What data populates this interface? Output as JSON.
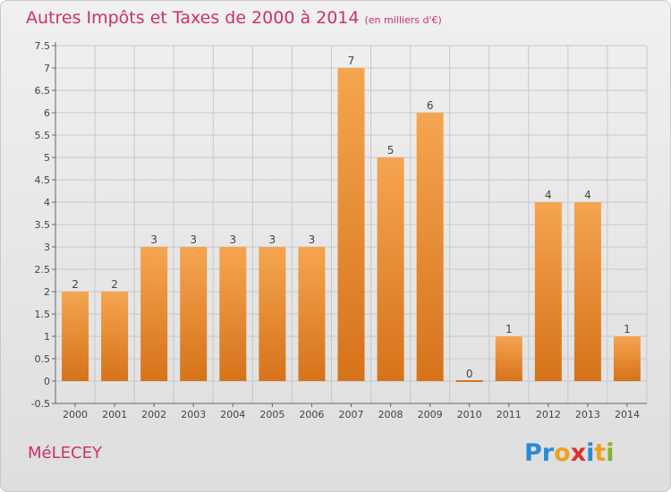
{
  "title": "Autres Impôts et Taxes de 2000 à 2014",
  "subtitle": "(en milliers d'€)",
  "commune": "MéLECEY",
  "logo": {
    "text": "Proxiti",
    "letters": [
      {
        "char": "P",
        "color": "#2a8ad5"
      },
      {
        "char": "r",
        "color": "#2a8ad5"
      },
      {
        "char": "o",
        "color": "#f0a020"
      },
      {
        "char": "x",
        "color": "#e03030"
      },
      {
        "char": "i",
        "color": "#2a8ad5"
      },
      {
        "char": "t",
        "color": "#f0a020"
      },
      {
        "char": "i",
        "color": "#80b030"
      }
    ]
  },
  "colors": {
    "bar_top": "#f5a550",
    "bar_bottom": "#d6731a",
    "title": "#cc3366",
    "grid": "#c8c8c8"
  },
  "chart_data": {
    "type": "bar",
    "categories": [
      "2000",
      "2001",
      "2002",
      "2003",
      "2004",
      "2005",
      "2006",
      "2007",
      "2008",
      "2009",
      "2010",
      "2011",
      "2012",
      "2013",
      "2014"
    ],
    "values": [
      2,
      2,
      3,
      3,
      3,
      3,
      3,
      7,
      5,
      6,
      0,
      1,
      4,
      4,
      1
    ],
    "data_labels": [
      "2",
      "2",
      "3",
      "3",
      "3",
      "3",
      "3",
      "7",
      "5",
      "6",
      "0",
      "1",
      "4",
      "4",
      "1"
    ],
    "ylim": [
      -0.5,
      7.5
    ],
    "yticks": [
      {
        "value": -0.5,
        "label": "-0.5"
      },
      {
        "value": 0,
        "label": "0"
      },
      {
        "value": 0.5,
        "label": "0.5"
      },
      {
        "value": 1,
        "label": "1"
      },
      {
        "value": 1.5,
        "label": "1.5"
      },
      {
        "value": 2,
        "label": "2"
      },
      {
        "value": 2.5,
        "label": "2.5"
      },
      {
        "value": 3,
        "label": "3"
      },
      {
        "value": 3.5,
        "label": "3.5"
      },
      {
        "value": 4,
        "label": "4"
      },
      {
        "value": 4.5,
        "label": "4.5"
      },
      {
        "value": 5,
        "label": "5"
      },
      {
        "value": 5.5,
        "label": "5.5"
      },
      {
        "value": 6,
        "label": "6"
      },
      {
        "value": 6.5,
        "label": "6.5"
      },
      {
        "value": 7,
        "label": "7"
      },
      {
        "value": 7.5,
        "label": "7.5"
      }
    ],
    "grid": true,
    "xlabel": "",
    "ylabel": ""
  }
}
